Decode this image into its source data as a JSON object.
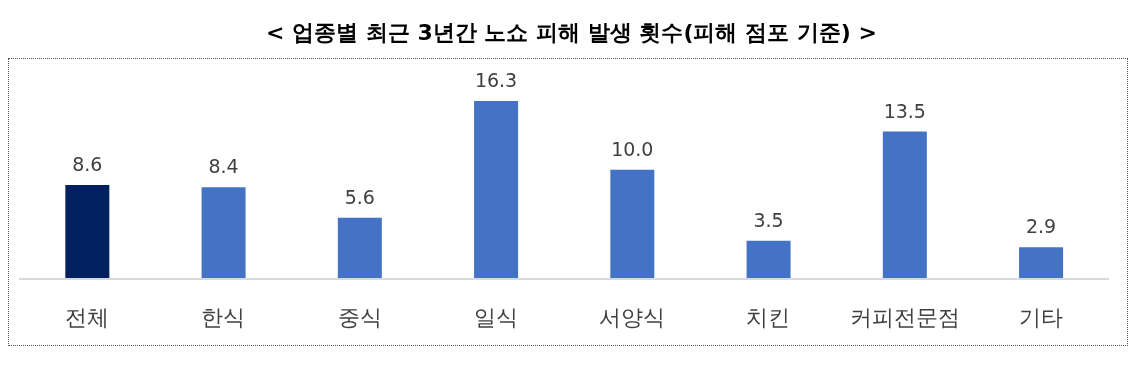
{
  "chart_data": {
    "type": "bar",
    "title": "< 업종별 최근 3년간 노쇼 피해 발생 횟수(피해 점포 기준) >",
    "categories": [
      "전체",
      "한식",
      "중식",
      "일식",
      "서양식",
      "치킨",
      "커피전문점",
      "기타"
    ],
    "values": [
      8.6,
      8.4,
      5.6,
      16.3,
      10.0,
      3.5,
      13.5,
      2.9
    ],
    "colors": [
      "#002060",
      "#4472c4",
      "#4472c4",
      "#4472c4",
      "#4472c4",
      "#4472c4",
      "#4472c4",
      "#4472c4"
    ],
    "value_labels": [
      "8.6",
      "8.4",
      "5.6",
      "16.3",
      "10.0",
      "3.5",
      "13.5",
      "2.9"
    ],
    "grid": false,
    "legend": false
  }
}
